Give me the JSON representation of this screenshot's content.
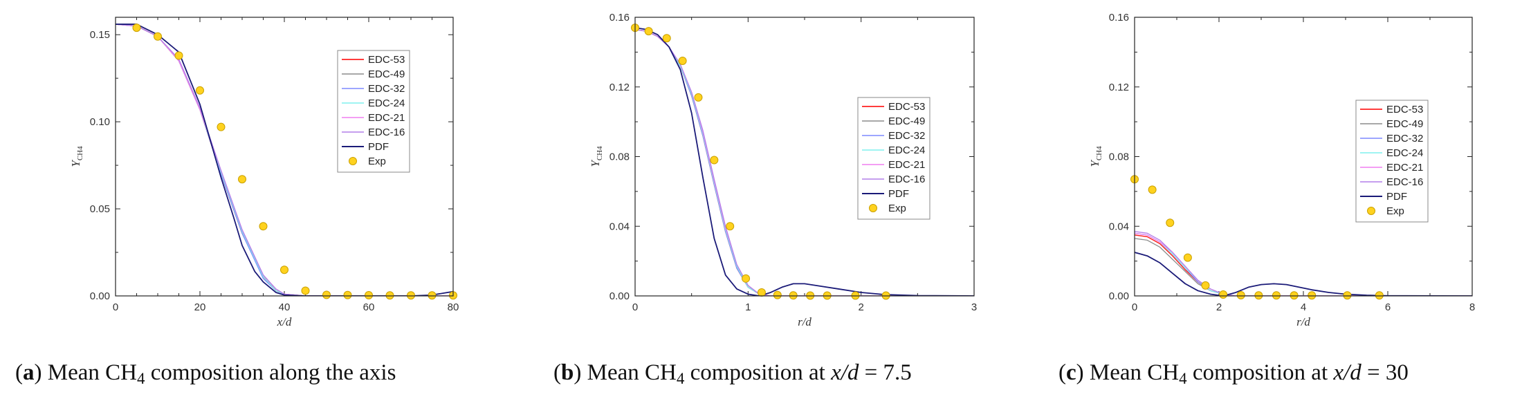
{
  "series_styles": [
    {
      "name": "EDC-53",
      "color": "#ff2020",
      "width": 1.5
    },
    {
      "name": "EDC-49",
      "color": "#8c8c8c",
      "width": 1.3
    },
    {
      "name": "EDC-32",
      "color": "#7d88ff",
      "width": 1.3
    },
    {
      "name": "EDC-24",
      "color": "#7ff0ee",
      "width": 1.3
    },
    {
      "name": "EDC-21",
      "color": "#f07ef0",
      "width": 1.3
    },
    {
      "name": "EDC-16",
      "color": "#b27ee8",
      "width": 1.3
    },
    {
      "name": "PDF",
      "color": "#1a1a78",
      "width": 1.8
    }
  ],
  "exp_style": {
    "name": "Exp",
    "fill": "#ffd21f",
    "stroke": "#c9a000"
  },
  "chart_data": [
    {
      "type": "line",
      "id": "a",
      "caption": {
        "letter": "a",
        "pre": " Mean CH",
        "sub": "4",
        "post": " composition along the axis",
        "var": "",
        "eq": ""
      },
      "xlabel": "x/d",
      "ylabel": {
        "main": "Y",
        "sub": "CH4"
      },
      "xlim": [
        0,
        80
      ],
      "ylim": [
        0,
        0.16
      ],
      "xticks": [
        0,
        20,
        40,
        60,
        80
      ],
      "xtick_labels": [
        "0",
        "20",
        "40",
        "60",
        "80"
      ],
      "yticks": [
        0,
        0.05,
        0.1,
        0.15
      ],
      "ytick_labels": [
        "0.00",
        "0.05",
        "0.10",
        "0.15"
      ],
      "x_minor_step": 5,
      "y_minor_step": 0.025,
      "legend_position": "center-right",
      "series": [
        {
          "name": "EDC-53",
          "x": [
            0,
            5,
            10,
            15,
            20,
            25,
            30,
            35,
            38,
            40,
            45,
            50,
            60,
            70,
            80
          ],
          "y": [
            0.156,
            0.155,
            0.149,
            0.135,
            0.107,
            0.07,
            0.036,
            0.011,
            0.003,
            0.001,
            0.0,
            0.0,
            0.0,
            0.0,
            0.0
          ]
        },
        {
          "name": "EDC-49",
          "x": [
            0,
            5,
            10,
            15,
            20,
            25,
            30,
            35,
            38,
            40,
            45,
            50,
            60,
            70,
            80
          ],
          "y": [
            0.156,
            0.155,
            0.149,
            0.135,
            0.107,
            0.07,
            0.036,
            0.011,
            0.003,
            0.001,
            0.0,
            0.0,
            0.0,
            0.0,
            0.0
          ]
        },
        {
          "name": "EDC-32",
          "x": [
            0,
            5,
            10,
            15,
            20,
            25,
            30,
            35,
            38,
            40,
            45,
            50,
            60,
            70,
            80
          ],
          "y": [
            0.156,
            0.155,
            0.149,
            0.135,
            0.107,
            0.07,
            0.036,
            0.01,
            0.003,
            0.001,
            0.0,
            0.0,
            0.0,
            0.0,
            0.0
          ]
        },
        {
          "name": "EDC-24",
          "x": [
            0,
            5,
            10,
            15,
            20,
            25,
            30,
            35,
            38,
            40,
            45,
            50,
            60,
            70,
            80
          ],
          "y": [
            0.156,
            0.155,
            0.149,
            0.135,
            0.107,
            0.071,
            0.037,
            0.011,
            0.003,
            0.001,
            0.0,
            0.0,
            0.0,
            0.0,
            0.0
          ]
        },
        {
          "name": "EDC-21",
          "x": [
            0,
            5,
            10,
            15,
            20,
            25,
            30,
            35,
            38,
            40,
            45,
            50,
            60,
            70,
            80
          ],
          "y": [
            0.156,
            0.155,
            0.149,
            0.135,
            0.107,
            0.072,
            0.038,
            0.012,
            0.004,
            0.001,
            0.0,
            0.0,
            0.0,
            0.0,
            0.0
          ]
        },
        {
          "name": "EDC-16",
          "x": [
            0,
            5,
            10,
            15,
            20,
            25,
            30,
            35,
            38,
            40,
            45,
            50,
            60,
            70,
            80
          ],
          "y": [
            0.156,
            0.155,
            0.149,
            0.136,
            0.108,
            0.072,
            0.038,
            0.012,
            0.004,
            0.001,
            0.0,
            0.0,
            0.0,
            0.0,
            0.0
          ]
        },
        {
          "name": "PDF",
          "x": [
            0,
            5,
            10,
            15,
            20,
            25,
            28,
            30,
            33,
            35,
            38,
            40,
            45,
            50,
            60,
            70,
            75,
            80
          ],
          "y": [
            0.156,
            0.156,
            0.15,
            0.14,
            0.11,
            0.068,
            0.045,
            0.029,
            0.014,
            0.008,
            0.002,
            0.0005,
            0.0,
            0.0,
            0.0,
            0.0,
            0.0005,
            0.0025
          ]
        }
      ],
      "exp": {
        "x": [
          5,
          10,
          15,
          20,
          25,
          30,
          35,
          40,
          45,
          50,
          55,
          60,
          65,
          70,
          75,
          80
        ],
        "y": [
          0.154,
          0.149,
          0.138,
          0.118,
          0.097,
          0.067,
          0.04,
          0.015,
          0.003,
          0.0006,
          0.0005,
          0.0004,
          0.0003,
          0.0003,
          0.0003,
          0.0003
        ]
      }
    },
    {
      "type": "line",
      "id": "b",
      "caption": {
        "letter": "b",
        "pre": " Mean CH",
        "sub": "4",
        "post": " composition at ",
        "var": "x/d",
        "eq": " = 7.5"
      },
      "xlabel": "r/d",
      "ylabel": {
        "main": "Y",
        "sub": "CH4"
      },
      "xlim": [
        0,
        3
      ],
      "ylim": [
        0,
        0.16
      ],
      "xticks": [
        0,
        1,
        2,
        3
      ],
      "xtick_labels": [
        "0",
        "1",
        "2",
        "3"
      ],
      "yticks": [
        0,
        0.04,
        0.08,
        0.12,
        0.16
      ],
      "ytick_labels": [
        "0.00",
        "0.04",
        "0.08",
        "0.12",
        "0.16"
      ],
      "x_minor_step": 0.5,
      "y_minor_step": 0.02,
      "legend_position": "center-right",
      "series": [
        {
          "name": "EDC-53",
          "x": [
            0,
            0.1,
            0.2,
            0.3,
            0.4,
            0.5,
            0.6,
            0.7,
            0.8,
            0.9,
            1.0,
            1.1,
            1.2,
            1.5,
            2.0,
            3.0
          ],
          "y": [
            0.153,
            0.152,
            0.149,
            0.143,
            0.132,
            0.115,
            0.092,
            0.064,
            0.037,
            0.016,
            0.005,
            0.001,
            0.0,
            0.0,
            0.0,
            0.0
          ]
        },
        {
          "name": "EDC-49",
          "x": [
            0,
            0.1,
            0.2,
            0.3,
            0.4,
            0.5,
            0.6,
            0.7,
            0.8,
            0.9,
            1.0,
            1.1,
            1.2,
            1.5,
            2.0,
            3.0
          ],
          "y": [
            0.153,
            0.152,
            0.149,
            0.143,
            0.132,
            0.115,
            0.092,
            0.064,
            0.037,
            0.016,
            0.005,
            0.001,
            0.0,
            0.0,
            0.0,
            0.0
          ]
        },
        {
          "name": "EDC-32",
          "x": [
            0,
            0.1,
            0.2,
            0.3,
            0.4,
            0.5,
            0.6,
            0.7,
            0.8,
            0.9,
            1.0,
            1.1,
            1.2,
            1.5,
            2.0,
            3.0
          ],
          "y": [
            0.153,
            0.152,
            0.149,
            0.143,
            0.132,
            0.115,
            0.092,
            0.064,
            0.037,
            0.016,
            0.005,
            0.001,
            0.0,
            0.0,
            0.0,
            0.0
          ]
        },
        {
          "name": "EDC-24",
          "x": [
            0,
            0.1,
            0.2,
            0.3,
            0.4,
            0.5,
            0.6,
            0.7,
            0.8,
            0.9,
            1.0,
            1.1,
            1.2,
            1.5,
            2.0,
            3.0
          ],
          "y": [
            0.153,
            0.152,
            0.149,
            0.143,
            0.132,
            0.116,
            0.093,
            0.065,
            0.038,
            0.017,
            0.005,
            0.001,
            0.0,
            0.0,
            0.0,
            0.0
          ]
        },
        {
          "name": "EDC-21",
          "x": [
            0,
            0.1,
            0.2,
            0.3,
            0.4,
            0.5,
            0.6,
            0.7,
            0.8,
            0.9,
            1.0,
            1.1,
            1.2,
            1.5,
            2.0,
            3.0
          ],
          "y": [
            0.153,
            0.152,
            0.149,
            0.143,
            0.133,
            0.117,
            0.094,
            0.066,
            0.039,
            0.018,
            0.006,
            0.001,
            0.0,
            0.0,
            0.0,
            0.0
          ]
        },
        {
          "name": "EDC-16",
          "x": [
            0,
            0.1,
            0.2,
            0.3,
            0.4,
            0.5,
            0.6,
            0.7,
            0.8,
            0.9,
            1.0,
            1.1,
            1.2,
            1.5,
            2.0,
            3.0
          ],
          "y": [
            0.153,
            0.152,
            0.149,
            0.143,
            0.133,
            0.117,
            0.095,
            0.067,
            0.04,
            0.018,
            0.006,
            0.001,
            0.0,
            0.0,
            0.0,
            0.0
          ]
        },
        {
          "name": "PDF",
          "x": [
            0,
            0.1,
            0.2,
            0.3,
            0.4,
            0.5,
            0.6,
            0.7,
            0.8,
            0.9,
            1.0,
            1.1,
            1.2,
            1.3,
            1.4,
            1.5,
            1.6,
            1.8,
            2.0,
            2.2,
            2.5,
            3.0
          ],
          "y": [
            0.154,
            0.153,
            0.15,
            0.143,
            0.13,
            0.105,
            0.068,
            0.033,
            0.012,
            0.004,
            0.001,
            0.0,
            0.002,
            0.005,
            0.007,
            0.007,
            0.006,
            0.004,
            0.002,
            0.0008,
            0.0002,
            0.0
          ]
        }
      ],
      "exp": {
        "x": [
          0,
          0.12,
          0.28,
          0.42,
          0.56,
          0.7,
          0.84,
          0.98,
          1.12,
          1.26,
          1.4,
          1.55,
          1.7,
          1.95,
          2.22
        ],
        "y": [
          0.154,
          0.152,
          0.148,
          0.135,
          0.114,
          0.078,
          0.04,
          0.01,
          0.002,
          0.0005,
          0.0003,
          0.0002,
          0.0002,
          0.0002,
          0.0002
        ]
      }
    },
    {
      "type": "line",
      "id": "c",
      "caption": {
        "letter": "c",
        "pre": " Mean CH",
        "sub": "4",
        "post": " composition at ",
        "var": "x/d",
        "eq": " = 30"
      },
      "xlabel": "r/d",
      "ylabel": {
        "main": "Y",
        "sub": "CH4"
      },
      "xlim": [
        0,
        8
      ],
      "ylim": [
        0,
        0.16
      ],
      "xticks": [
        0,
        2,
        4,
        6,
        8
      ],
      "xtick_labels": [
        "0",
        "2",
        "4",
        "6",
        "8"
      ],
      "yticks": [
        0,
        0.04,
        0.08,
        0.12,
        0.16
      ],
      "ytick_labels": [
        "0.00",
        "0.04",
        "0.08",
        "0.12",
        "0.16"
      ],
      "x_minor_step": 1,
      "y_minor_step": 0.02,
      "legend_position": "top-right",
      "series": [
        {
          "name": "EDC-53",
          "x": [
            0,
            0.3,
            0.6,
            0.9,
            1.2,
            1.5,
            1.8,
            2.1,
            2.4,
            3.0,
            4.0,
            8.0
          ],
          "y": [
            0.035,
            0.034,
            0.03,
            0.023,
            0.015,
            0.008,
            0.003,
            0.001,
            0.0,
            0.0,
            0.0,
            0.0
          ]
        },
        {
          "name": "EDC-49",
          "x": [
            0,
            0.3,
            0.6,
            0.9,
            1.2,
            1.5,
            1.8,
            2.1,
            2.4,
            3.0,
            4.0,
            8.0
          ],
          "y": [
            0.033,
            0.032,
            0.028,
            0.021,
            0.014,
            0.007,
            0.003,
            0.001,
            0.0,
            0.0,
            0.0,
            0.0
          ]
        },
        {
          "name": "EDC-32",
          "x": [
            0,
            0.3,
            0.6,
            0.9,
            1.2,
            1.5,
            1.8,
            2.1,
            2.4,
            3.0,
            4.0,
            8.0
          ],
          "y": [
            0.036,
            0.035,
            0.031,
            0.024,
            0.016,
            0.008,
            0.003,
            0.001,
            0.0,
            0.0,
            0.0,
            0.0
          ]
        },
        {
          "name": "EDC-24",
          "x": [
            0,
            0.3,
            0.6,
            0.9,
            1.2,
            1.5,
            1.8,
            2.1,
            2.4,
            3.0,
            4.0,
            8.0
          ],
          "y": [
            0.036,
            0.035,
            0.031,
            0.024,
            0.016,
            0.009,
            0.003,
            0.001,
            0.0,
            0.0,
            0.0,
            0.0
          ]
        },
        {
          "name": "EDC-21",
          "x": [
            0,
            0.3,
            0.6,
            0.9,
            1.2,
            1.5,
            1.8,
            2.1,
            2.4,
            3.0,
            4.0,
            8.0
          ],
          "y": [
            0.036,
            0.035,
            0.031,
            0.025,
            0.017,
            0.009,
            0.004,
            0.001,
            0.0,
            0.0,
            0.0,
            0.0
          ]
        },
        {
          "name": "EDC-16",
          "x": [
            0,
            0.3,
            0.6,
            0.9,
            1.2,
            1.5,
            1.8,
            2.1,
            2.4,
            3.0,
            4.0,
            8.0
          ],
          "y": [
            0.037,
            0.036,
            0.032,
            0.025,
            0.017,
            0.009,
            0.004,
            0.001,
            0.0,
            0.0,
            0.0,
            0.0
          ]
        },
        {
          "name": "PDF",
          "x": [
            0,
            0.3,
            0.6,
            0.9,
            1.2,
            1.5,
            1.8,
            2.1,
            2.4,
            2.7,
            3.0,
            3.3,
            3.6,
            3.9,
            4.2,
            4.6,
            5.0,
            5.5,
            6.0,
            8.0
          ],
          "y": [
            0.025,
            0.023,
            0.019,
            0.013,
            0.007,
            0.003,
            0.001,
            0.0,
            0.002,
            0.005,
            0.0065,
            0.007,
            0.0065,
            0.005,
            0.0035,
            0.002,
            0.001,
            0.0004,
            0.0001,
            0.0
          ]
        }
      ],
      "exp": {
        "x": [
          0,
          0.42,
          0.84,
          1.26,
          1.68,
          2.1,
          2.52,
          2.94,
          3.36,
          3.78,
          4.2,
          5.04,
          5.8
        ],
        "y": [
          0.067,
          0.061,
          0.042,
          0.022,
          0.006,
          0.0008,
          0.0004,
          0.0003,
          0.0003,
          0.0003,
          0.0003,
          0.0003,
          0.0003
        ]
      }
    }
  ]
}
